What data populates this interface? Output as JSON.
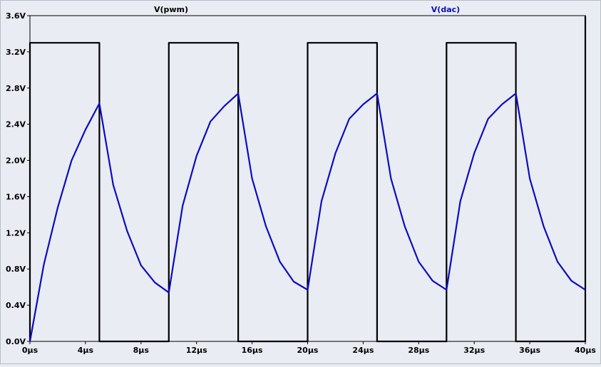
{
  "chart_data": {
    "type": "line",
    "title": "",
    "xlabel": "",
    "ylabel": "",
    "xlim": [
      0,
      40
    ],
    "ylim": [
      0,
      3.6
    ],
    "grid": false,
    "background": "#e9ecf2",
    "x_ticks": [
      0,
      4,
      8,
      12,
      16,
      20,
      24,
      28,
      32,
      36,
      40
    ],
    "x_tick_labels": [
      "0µs",
      "4µs",
      "8µs",
      "12µs",
      "16µs",
      "20µs",
      "24µs",
      "28µs",
      "32µs",
      "36µs",
      "40µs"
    ],
    "y_ticks": [
      0,
      0.4,
      0.8,
      1.2,
      1.6,
      2.0,
      2.4,
      2.8,
      3.2,
      3.6
    ],
    "y_tick_labels": [
      "0.0V",
      "0.4V",
      "0.8V",
      "1.2V",
      "1.6V",
      "2.0V",
      "2.4V",
      "2.8V",
      "3.2V",
      "3.6V"
    ],
    "series": [
      {
        "name": "V(pwm)",
        "color": "#000000",
        "x": [
          0,
          0,
          5,
          5,
          10,
          10,
          15,
          15,
          20,
          20,
          25,
          25,
          30,
          30,
          35,
          35,
          40,
          40
        ],
        "y": [
          0,
          3.3,
          3.3,
          0,
          0,
          3.3,
          3.3,
          0,
          0,
          3.3,
          3.3,
          0,
          0,
          3.3,
          3.3,
          0,
          0,
          3.6
        ]
      },
      {
        "name": "V(dac)",
        "color": "#0c0cc0",
        "x": [
          0,
          1,
          2,
          3,
          4,
          5,
          6,
          7,
          8,
          9,
          10,
          11,
          12,
          13,
          14,
          15,
          16,
          17,
          18,
          19,
          20,
          21,
          22,
          23,
          24,
          25,
          26,
          27,
          28,
          29,
          30,
          31,
          32,
          33,
          34,
          35,
          36,
          37,
          38,
          39,
          40
        ],
        "y": [
          0.0,
          0.85,
          1.48,
          2.0,
          2.34,
          2.63,
          1.73,
          1.22,
          0.84,
          0.65,
          0.54,
          1.5,
          2.05,
          2.43,
          2.6,
          2.74,
          1.8,
          1.27,
          0.88,
          0.66,
          0.57,
          1.55,
          2.08,
          2.46,
          2.62,
          2.74,
          1.8,
          1.27,
          0.88,
          0.67,
          0.57,
          1.55,
          2.08,
          2.46,
          2.62,
          2.74,
          1.8,
          1.27,
          0.88,
          0.67,
          0.57
        ]
      }
    ]
  }
}
